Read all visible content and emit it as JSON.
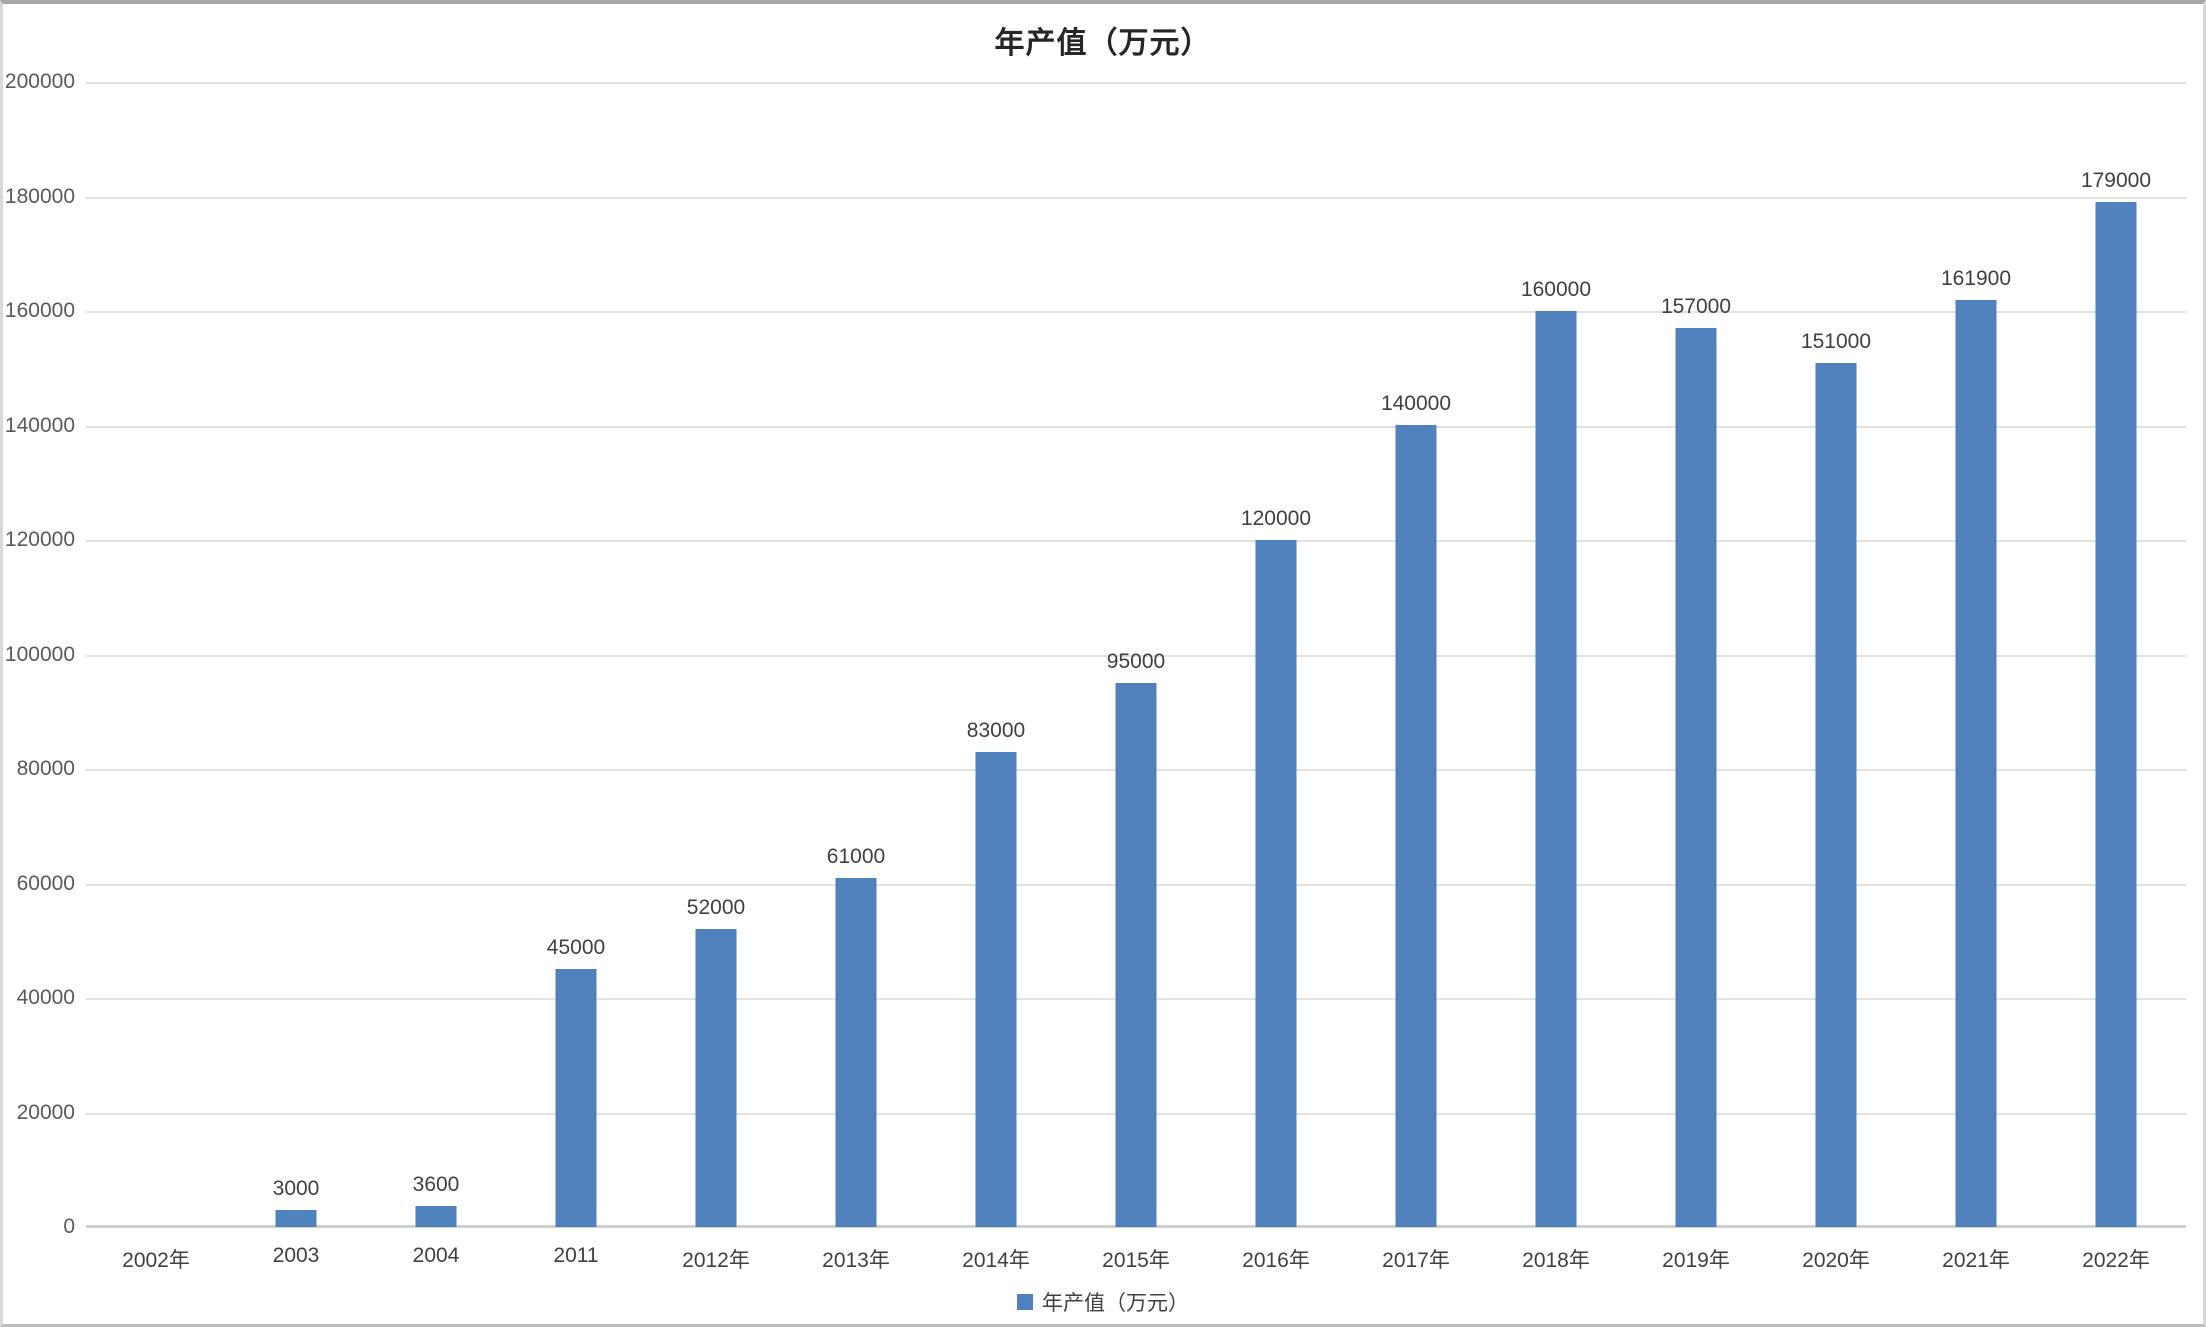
{
  "title": "年产值（万元）",
  "legend": {
    "label": "年产值（万元）",
    "swatch_color": "#4f81bd",
    "position": "bottom-center"
  },
  "colors": {
    "bar": "#4f81bd",
    "gridline": "#e2e2e2",
    "axis_line": "#d0d0d0",
    "tick_label": "#595959",
    "data_label": "#404040",
    "title_text": "#262626",
    "background": "#ffffff"
  },
  "chart_data": {
    "type": "bar",
    "title": "年产值（万元）",
    "series_name": "年产值（万元）",
    "categories": [
      "2002年",
      "2003",
      "2004",
      "2011",
      "2012年",
      "2013年",
      "2014年",
      "2015年",
      "2016年",
      "2017年",
      "2018年",
      "2019年",
      "2020年",
      "2021年",
      "2022年"
    ],
    "values": [
      0,
      3000,
      3600,
      45000,
      52000,
      61000,
      83000,
      95000,
      120000,
      140000,
      160000,
      157000,
      151000,
      161900,
      179000
    ],
    "data_labels": [
      "",
      "3000",
      "3600",
      "45000",
      "52000",
      "61000",
      "83000",
      "95000",
      "120000",
      "140000",
      "160000",
      "157000",
      "151000",
      "161900",
      "179000"
    ],
    "xlabel": "",
    "ylabel": "",
    "ylim": [
      0,
      200000
    ],
    "ytick_interval": 20000,
    "yticks": [
      "0",
      "20000",
      "40000",
      "60000",
      "80000",
      "100000",
      "120000",
      "140000",
      "160000",
      "180000",
      "200000"
    ],
    "grid": true,
    "legend_position": "bottom"
  }
}
